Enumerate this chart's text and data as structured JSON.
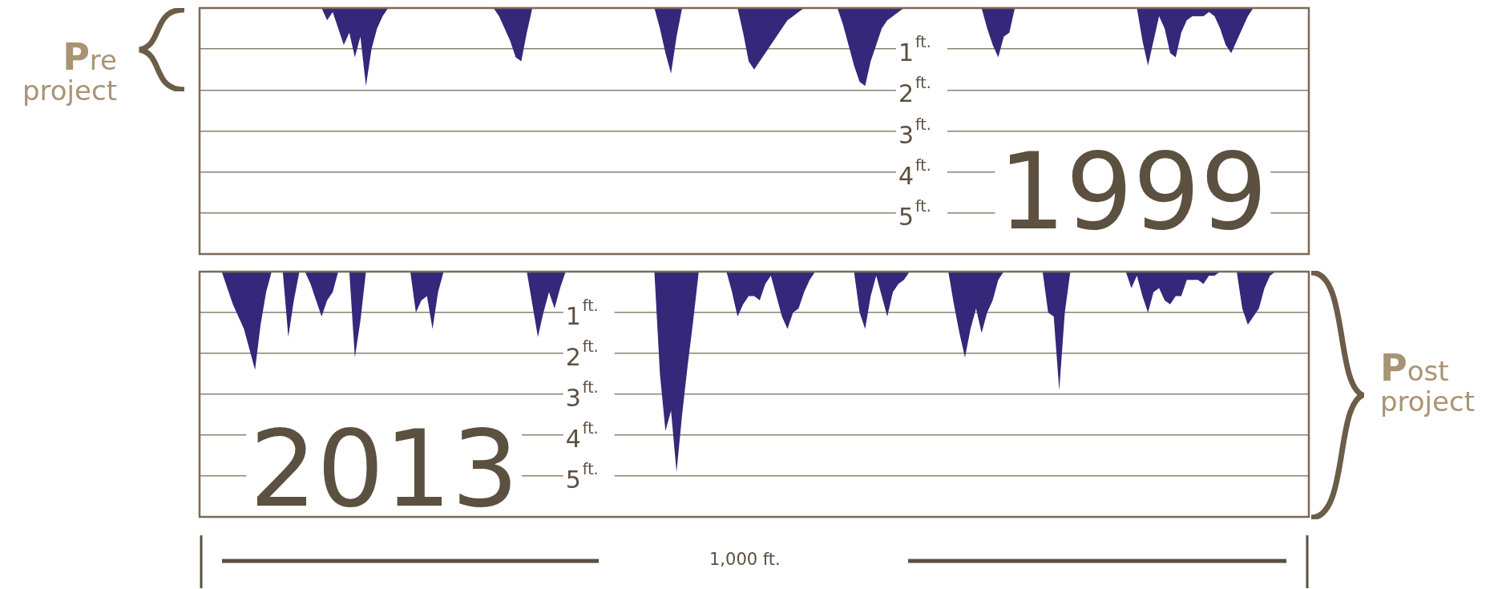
{
  "chart_data": [
    {
      "type": "area",
      "title": "1999",
      "categories": [
        null,
        null,
        null,
        null,
        null,
        null,
        null,
        null,
        null,
        null,
        null,
        null,
        null,
        null,
        null,
        null,
        null,
        null,
        null,
        null,
        null,
        null,
        null,
        null,
        null,
        null,
        null,
        null,
        null,
        null,
        null,
        null,
        null,
        null,
        null,
        null,
        null,
        null,
        null,
        null,
        null,
        null,
        null,
        null,
        null,
        null,
        null,
        null,
        null,
        null,
        null,
        null,
        null,
        null,
        null,
        null,
        null,
        null,
        null,
        null,
        null,
        null,
        null,
        null,
        null,
        null,
        null,
        null,
        null,
        null,
        null,
        null,
        null,
        null,
        null,
        null,
        null,
        null,
        null,
        null,
        null,
        null,
        null,
        null,
        null,
        null,
        null,
        null,
        null,
        null,
        null,
        null,
        null,
        null,
        null,
        null,
        null,
        null,
        null,
        null,
        null,
        null,
        null,
        null,
        null,
        null,
        null,
        null,
        null,
        null,
        null,
        null,
        null,
        null,
        null,
        null,
        null,
        null,
        null,
        null,
        null,
        null,
        null,
        null,
        null,
        null,
        null,
        null,
        null,
        null,
        null,
        null,
        null,
        null,
        null,
        null,
        null,
        null,
        null,
        null,
        null,
        null,
        null,
        null,
        null,
        null,
        null,
        null,
        null,
        null,
        null,
        null,
        null,
        null,
        null,
        null,
        null,
        null,
        null,
        null,
        null,
        null,
        null,
        null,
        null,
        null,
        null,
        null,
        null,
        null,
        null,
        null,
        null,
        null,
        null,
        null,
        null,
        null,
        null,
        null,
        null,
        null,
        null,
        null,
        null,
        null,
        null,
        null,
        null,
        null,
        null,
        null,
        null,
        null,
        null,
        null,
        null,
        null,
        null,
        null,
        null
      ],
      "values": [
        0,
        0,
        0,
        0,
        0,
        0,
        0,
        0,
        0,
        0,
        0,
        0,
        0,
        0,
        0,
        0,
        0,
        0,
        0,
        0,
        0,
        0,
        0,
        0.3,
        0.1,
        0.5,
        0.9,
        0.6,
        1.2,
        0.7,
        1.9,
        1.0,
        0.5,
        0.2,
        0,
        0,
        0,
        0,
        0,
        0,
        0,
        0,
        0,
        0,
        0,
        0,
        0,
        0,
        0,
        0,
        0,
        0,
        0,
        0,
        0.2,
        0.5,
        0.8,
        1.2,
        1.3,
        0.6,
        0,
        0,
        0,
        0,
        0,
        0,
        0,
        0,
        0,
        0,
        0,
        0,
        0,
        0,
        0,
        0,
        0,
        0,
        0,
        0,
        0,
        0,
        0,
        0.5,
        1.1,
        1.6,
        0.7,
        0,
        0,
        0,
        0,
        0,
        0,
        0,
        0,
        0,
        0,
        0,
        0.6,
        1.3,
        1.5,
        1.3,
        1.1,
        0.9,
        0.7,
        0.5,
        0.3,
        0.2,
        0.1,
        0,
        0,
        0,
        0,
        0,
        0,
        0,
        0.4,
        0.9,
        1.4,
        1.8,
        1.9,
        1.3,
        0.9,
        0.5,
        0.3,
        0.2,
        0.1,
        0,
        0,
        0,
        0,
        0,
        0,
        0,
        0,
        0,
        0,
        0,
        0,
        0,
        0,
        0,
        0.5,
        0.9,
        1.2,
        0.7,
        0.6,
        0,
        0,
        0,
        0,
        0,
        0,
        0,
        0,
        0,
        0,
        0,
        0,
        0,
        0,
        0,
        0,
        0,
        0,
        0,
        0,
        0,
        0,
        0,
        0.8,
        1.4,
        0.8,
        0.2,
        0.5,
        1.1,
        1.2,
        0.6,
        0.3,
        0.2,
        0.2,
        0.2,
        0.1,
        0.2,
        0.5,
        0.9,
        1.1,
        0.8,
        0.5,
        0.2,
        0,
        0,
        0,
        0,
        0,
        0,
        0,
        0,
        0,
        0,
        0
      ],
      "color": "#35287a",
      "ylim": [
        6,
        0
      ],
      "yticks": [
        {
          "value": 1,
          "label": "1$^{ft.}$"
        },
        {
          "value": 2,
          "label": "2$^{ft.}$"
        },
        {
          "value": 3,
          "label": "3$^{ft.}$"
        },
        {
          "value": 4,
          "label": "4$^{ft.}$"
        },
        {
          "value": 5,
          "label": "5$^{ft.}$"
        }
      ],
      "grid": "y",
      "tick_labels": "y",
      "annotations": [
        "Pre project"
      ]
    },
    {
      "type": "area",
      "title": "2013",
      "categories": [
        null,
        null,
        null,
        null,
        null,
        null,
        null,
        null,
        null,
        null,
        null,
        null,
        null,
        null,
        null,
        null,
        null,
        null,
        null,
        null,
        null,
        null,
        null,
        null,
        null,
        null,
        null,
        null,
        null,
        null,
        null,
        null,
        null,
        null,
        null,
        null,
        null,
        null,
        null,
        null,
        null,
        null,
        null,
        null,
        null,
        null,
        null,
        null,
        null,
        null,
        null,
        null,
        null,
        null,
        null,
        null,
        null,
        null,
        null,
        null,
        null,
        null,
        null,
        null,
        null,
        null,
        null,
        null,
        null,
        null,
        null,
        null,
        null,
        null,
        null,
        null,
        null,
        null,
        null,
        null,
        null,
        null,
        null,
        null,
        null,
        null,
        null,
        null,
        null,
        null,
        null,
        null,
        null,
        null,
        null,
        null,
        null,
        null,
        null,
        null,
        null,
        null,
        null,
        null,
        null,
        null,
        null,
        null,
        null,
        null,
        null,
        null,
        null,
        null,
        null,
        null,
        null,
        null,
        null,
        null,
        null,
        null,
        null,
        null,
        null,
        null,
        null,
        null,
        null,
        null,
        null,
        null,
        null,
        null,
        null,
        null,
        null,
        null,
        null,
        null,
        null,
        null,
        null,
        null,
        null,
        null,
        null,
        null,
        null,
        null,
        null,
        null,
        null,
        null,
        null,
        null,
        null,
        null,
        null,
        null,
        null,
        null,
        null,
        null,
        null,
        null,
        null,
        null,
        null,
        null,
        null,
        null,
        null,
        null,
        null,
        null,
        null,
        null,
        null,
        null,
        null,
        null,
        null,
        null,
        null,
        null,
        null,
        null,
        null,
        null,
        null,
        null,
        null,
        null,
        null,
        null,
        null,
        null,
        null,
        null,
        null
      ],
      "values": [
        0,
        0,
        0,
        0,
        0,
        0.4,
        0.8,
        1.1,
        1.4,
        1.9,
        2.4,
        1.3,
        0.5,
        0,
        0,
        0,
        1.6,
        0.7,
        0,
        0,
        0.3,
        0.7,
        1.1,
        0.7,
        0.5,
        0,
        0,
        0,
        2.1,
        1.2,
        0,
        0,
        0,
        0,
        0,
        0,
        0,
        0,
        0,
        1.0,
        0.7,
        0.6,
        1.4,
        0.5,
        0,
        0,
        0,
        0,
        0,
        0,
        0,
        0,
        0,
        0,
        0,
        0,
        0,
        0,
        0,
        0,
        0.8,
        1.6,
        1.0,
        0.5,
        0.9,
        0.4,
        0,
        0,
        0,
        0,
        0,
        0,
        0,
        0,
        0,
        0,
        0,
        0,
        0,
        0,
        0,
        0,
        0,
        2.5,
        3.9,
        3.4,
        4.9,
        3.5,
        2.3,
        1.2,
        0,
        0,
        0,
        0,
        0,
        0,
        0.5,
        1.1,
        0.8,
        0.6,
        0.6,
        0.7,
        0.3,
        0.1,
        0.6,
        1.1,
        1.4,
        1.0,
        0.9,
        0.5,
        0.2,
        0,
        0,
        0,
        0,
        0,
        0,
        0,
        0,
        1.0,
        1.4,
        0.6,
        0.1,
        0.6,
        1.1,
        0.5,
        0.3,
        0.2,
        0,
        0,
        0,
        0,
        0,
        0,
        0,
        0,
        0.8,
        1.5,
        2.1,
        1.4,
        0.9,
        1.5,
        1.0,
        0.7,
        0.2,
        0,
        0,
        0,
        0,
        0,
        0,
        0,
        0,
        1.0,
        1.1,
        2.9,
        1.0,
        0,
        0,
        0,
        0,
        0,
        0,
        0,
        0,
        0,
        0,
        0,
        0.4,
        0.1,
        0.6,
        1.0,
        0.5,
        0.4,
        0.7,
        0.8,
        0.6,
        0.6,
        0.2,
        0.2,
        0.2,
        0.3,
        0.1,
        0.1,
        0,
        0,
        0,
        0,
        0.9,
        1.3,
        1.1,
        0.9,
        0.4,
        0.1,
        0,
        0,
        0,
        0,
        0,
        0,
        0
      ],
      "color": "#35287a",
      "ylim": [
        6,
        0
      ],
      "yticks": [
        {
          "value": 1,
          "label": "1$^{ft.}$"
        },
        {
          "value": 2,
          "label": "2$^{ft.}$"
        },
        {
          "value": 3,
          "label": "3$^{ft.}$"
        },
        {
          "value": 4,
          "label": "4$^{ft.}$"
        },
        {
          "value": 5,
          "label": "5$^{ft.}$"
        }
      ],
      "grid": "y",
      "tick_labels": "y",
      "annotations": [
        "Post project",
        "1,000 ft."
      ]
    }
  ]
}
